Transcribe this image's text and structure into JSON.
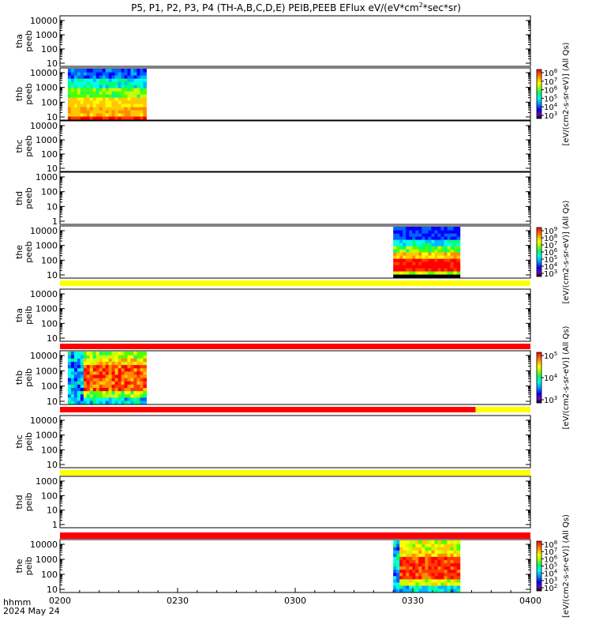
{
  "chart_data": {
    "type": "heatmap",
    "title": "P5, P1, P2, P3, P4 (TH-A,B,C,D,E) PEIB,PEEB EFlux eV/(eV*cm",
    "title_sup": "2",
    "title_tail": "*sec*sr)",
    "time_ticks": [
      "0200",
      "0230",
      "0300",
      "0330",
      "0400"
    ],
    "time_range_min": [
      0,
      120
    ],
    "time_unit_label": "hhmm",
    "date_label": "2024 May 24",
    "panels": [
      {
        "id": "tha-peeb",
        "label1": "tha",
        "label2": "peeb",
        "yticks": [
          "10000",
          "1000",
          "100",
          "10"
        ],
        "data_blocks": [],
        "colorbar": null
      },
      {
        "id": "thb-peeb",
        "label1": "thb",
        "label2": "peeb",
        "yticks": [
          "10000",
          "1000",
          "100",
          "10"
        ],
        "data_blocks": [
          {
            "start_min": 2,
            "end_min": 22,
            "profile": "electron_hot_low"
          }
        ],
        "colorbar": {
          "ticks": [
            "10^8",
            "10^7",
            "10^6",
            "10^5",
            "10^4",
            "10^3"
          ],
          "label": "[eV/(cm2-s-sr-eV)] (All Qs)"
        }
      },
      {
        "id": "thc-peeb",
        "label1": "thc",
        "label2": "peeb",
        "yticks": [
          "10000",
          "1000",
          "100",
          "10"
        ],
        "data_blocks": [],
        "colorbar": null
      },
      {
        "id": "thd-peeb",
        "label1": "thd",
        "label2": "peeb",
        "yticks": [
          "1000",
          "100",
          "10",
          "1"
        ],
        "data_blocks": [],
        "colorbar": null
      },
      {
        "id": "the-peeb",
        "label1": "the",
        "label2": "peeb",
        "yticks": [
          "10000",
          "1000",
          "100",
          "10"
        ],
        "data_blocks": [
          {
            "start_min": 85,
            "end_min": 102,
            "profile": "electron_band"
          }
        ],
        "colorbar": {
          "ticks": [
            "10^9",
            "10^8",
            "10^7",
            "10^6",
            "10^5",
            "10^4",
            "10^3"
          ],
          "label": "[eV/(cm2-s-sr-eV)] (All Qs)"
        }
      },
      {
        "id": "tha-peib",
        "label1": "tha",
        "label2": "peib",
        "yticks": [
          "10000",
          "1000",
          "100",
          "10"
        ],
        "data_blocks": [],
        "colorbar": null
      },
      {
        "id": "thb-peib",
        "label1": "thb",
        "label2": "peib",
        "yticks": [
          "10000",
          "1000",
          "100",
          "10"
        ],
        "data_blocks": [
          {
            "start_min": 2,
            "end_min": 22,
            "profile": "ion_hot"
          }
        ],
        "colorbar": {
          "ticks": [
            "10^5",
            "10^4",
            "10^3"
          ],
          "label": "[eV/(cm2-s-sr-eV)] (All Qs)"
        }
      },
      {
        "id": "thc-peib",
        "label1": "thc",
        "label2": "peib",
        "yticks": [
          "10000",
          "1000",
          "100",
          "10"
        ],
        "data_blocks": [],
        "colorbar": null
      },
      {
        "id": "thd-peib",
        "label1": "thd",
        "label2": "peib",
        "yticks": [
          "1000",
          "100",
          "10",
          "1"
        ],
        "data_blocks": [],
        "colorbar": null
      },
      {
        "id": "the-peib",
        "label1": "the",
        "label2": "peib",
        "yticks": [
          "10000",
          "1000",
          "100",
          "10"
        ],
        "data_blocks": [
          {
            "start_min": 85,
            "end_min": 102,
            "profile": "ion_wide"
          }
        ],
        "colorbar": {
          "ticks": [
            "10^8",
            "10^7",
            "10^6",
            "10^5",
            "10^4",
            "10^3",
            "10^2"
          ],
          "label": "[eV/(cm2-s-sr-eV)] (All Qs)"
        }
      }
    ],
    "status_bars": [
      {
        "after_panel": "the-peeb",
        "segments": [
          {
            "start_min": 0,
            "end_min": 120,
            "color": "#ffff00"
          }
        ]
      },
      {
        "after_panel": "tha-peib",
        "segments": [
          {
            "start_min": 0,
            "end_min": 120,
            "color": "#ff0000"
          }
        ]
      },
      {
        "after_panel": "thb-peib",
        "segments": [
          {
            "start_min": 0,
            "end_min": 106,
            "color": "#ff0000"
          },
          {
            "start_min": 106,
            "end_min": 120,
            "color": "#ffff00"
          }
        ]
      },
      {
        "after_panel": "thc-peib",
        "segments": [
          {
            "start_min": 0,
            "end_min": 120,
            "color": "#ffff00"
          }
        ]
      },
      {
        "after_panel": "thd-peib",
        "segments": [
          {
            "start_min": 0,
            "end_min": 120,
            "color": "#ff0000"
          }
        ]
      }
    ],
    "colormap": [
      "#000000",
      "#7800b4",
      "#0000ff",
      "#0064ff",
      "#00b4ff",
      "#00ffe6",
      "#00ff78",
      "#50ff00",
      "#c8ff00",
      "#ffff00",
      "#ffc800",
      "#ff8c00",
      "#ff3c00",
      "#ff0000"
    ]
  }
}
